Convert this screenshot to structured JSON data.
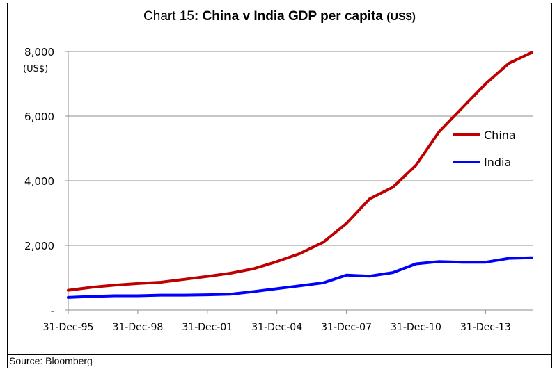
{
  "header": {
    "prefix": "Chart 15",
    "title": ": China v India GDP per capita",
    "unit": "(US$)"
  },
  "footer": {
    "source": "Source: Bloomberg"
  },
  "chart_data": {
    "type": "line",
    "ylabel": "(US$)",
    "ylim": [
      0,
      8000
    ],
    "yticks": [
      {
        "value": 0,
        "label": "-"
      },
      {
        "value": 2000,
        "label": "2,000"
      },
      {
        "value": 4000,
        "label": "4,000"
      },
      {
        "value": 6000,
        "label": "6,000"
      },
      {
        "value": 8000,
        "label": "8,000"
      }
    ],
    "xticks": [
      "31-Dec-95",
      "31-Dec-98",
      "31-Dec-01",
      "31-Dec-04",
      "31-Dec-07",
      "31-Dec-10",
      "31-Dec-13"
    ],
    "x": [
      1995,
      1996,
      1997,
      1998,
      1999,
      2000,
      2001,
      2002,
      2003,
      2004,
      2005,
      2006,
      2007,
      2008,
      2009,
      2010,
      2011,
      2012,
      2013,
      2014,
      2015
    ],
    "grid": true,
    "legend_position": "right",
    "series": [
      {
        "name": "China",
        "color": "#c00000",
        "values": [
          610,
          700,
          770,
          820,
          860,
          950,
          1040,
          1140,
          1280,
          1500,
          1750,
          2100,
          2680,
          3440,
          3800,
          4480,
          5520,
          6260,
          7000,
          7630,
          7970
        ]
      },
      {
        "name": "India",
        "color": "#0000ff",
        "values": [
          390,
          420,
          440,
          440,
          460,
          460,
          470,
          490,
          570,
          660,
          750,
          840,
          1080,
          1050,
          1160,
          1430,
          1500,
          1480,
          1480,
          1600,
          1620
        ]
      }
    ]
  }
}
